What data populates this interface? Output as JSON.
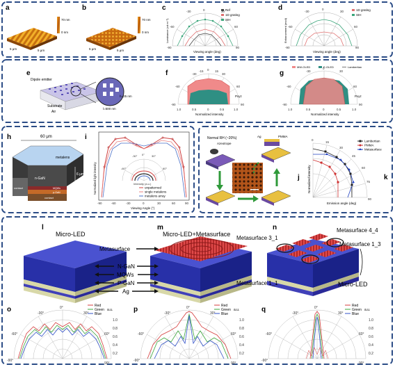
{
  "panels": {
    "a": {
      "letter": "a",
      "scale_top": "70 nm",
      "scale_bot": "0 nm",
      "axis1": "5 μm",
      "axis2": "5 μm"
    },
    "b": {
      "letter": "b",
      "scale_top": "70 nm",
      "scale_bot": "0 nm",
      "axis1": "5 μm",
      "axis2": "5 μm"
    },
    "c": {
      "letter": "c",
      "ylabel": "Luminance (cd m⁻²)",
      "xlabel": "Viewing angle (deg)",
      "legend": [
        "Ref",
        "1D grating",
        "SIH"
      ],
      "ticks": [
        "-90",
        "-60",
        "-30",
        "0",
        "30",
        "60",
        "90"
      ],
      "radial": [
        "6",
        "4",
        "2",
        "0"
      ]
    },
    "d": {
      "letter": "d",
      "ylabel": "Enhancement (mcd)",
      "xlabel": "Viewing angle (deg)",
      "legend": [
        "1D grating",
        "SIH"
      ],
      "ticks": [
        "-90",
        "-60",
        "-30",
        "0",
        "30",
        "60",
        "90"
      ]
    },
    "e": {
      "letter": "e",
      "labels": [
        "Dipole emitter",
        "Substrate",
        "Air",
        "h=25 nm",
        "l=500 nm"
      ]
    },
    "f": {
      "letter": "f",
      "ticks": [
        "-30",
        "-15",
        "0",
        "15",
        "30",
        "-60",
        "60",
        "-90",
        "90"
      ],
      "xlabel": "Normalized intensity",
      "pxyz": "Pxyz",
      "scale": [
        "1.0",
        "0.5",
        "0",
        "0.5",
        "1.0"
      ]
    },
    "g": {
      "letter": "g",
      "legend": [
        "MW-OLED",
        "E-OLED",
        "Lambertian"
      ],
      "ticks": [
        "-30",
        "-15",
        "0",
        "15",
        "30",
        "-60",
        "60",
        "-90",
        "90"
      ],
      "xlabel": "Normalized intensity",
      "pxyz": "Pxyz",
      "scale": [
        "1.0",
        "0.5",
        "0",
        "0.5",
        "1.0"
      ]
    },
    "h": {
      "letter": "h",
      "width": "60 μm",
      "height": "6 μm",
      "labels": [
        "metalens",
        "n-GaN",
        "MQWs",
        "p-GaN",
        "contact",
        "contact"
      ]
    },
    "i": {
      "letter": "i",
      "ylabel": "Normalized light intensity",
      "xlabel": "Viewing Angle (°)",
      "legend": [
        "unpatterned",
        "single metalens",
        "metalens array"
      ],
      "inset_ticks": [
        "-30°",
        "0°",
        "30°",
        "-60°",
        "60°"
      ],
      "inset_label": "Intensity (a.u.)",
      "xticks": [
        "-90",
        "-60",
        "-30",
        "0",
        "30",
        "60",
        "90"
      ]
    },
    "j": {
      "letter": "j",
      "labels": [
        "Normal RH (~20%)",
        "Azeotrope",
        "Ag",
        "PMMA"
      ]
    },
    "k": {
      "letter": "k",
      "legend": [
        "Lambertian",
        "PMMA",
        "Metasurface"
      ],
      "ylabel": "Normalized intensity",
      "xlabel": "Emission angle (deg)",
      "ticks": [
        "0",
        "15",
        "30",
        "45",
        "60",
        "75",
        "90"
      ]
    },
    "l": {
      "letter": "l",
      "title": "Micro-LED"
    },
    "m": {
      "letter": "m",
      "title": "Micro-LED+Metasurface"
    },
    "n": {
      "letter": "n"
    },
    "layers": [
      "Metasurface",
      "N-GaN",
      "MQWs",
      "P-GaN",
      "Ag"
    ],
    "n_labels": [
      "Metasurface 3_1",
      "Metasurface 4_4",
      "Metasurface 1_3",
      "Metasurface 1_1",
      "Micro-LED"
    ],
    "polar_bottom": {
      "o": {
        "letter": "o"
      },
      "p": {
        "letter": "p"
      },
      "q": {
        "letter": "q"
      },
      "legend": [
        "Red",
        "Green",
        "Blue"
      ],
      "unit": "a.u.",
      "ticks": [
        "-30°",
        "0°",
        "30°",
        "-60°",
        "60°",
        "-90°",
        "90°"
      ],
      "radial": [
        "1.0",
        "0.8",
        "0.6",
        "0.4",
        "0.2",
        "0"
      ]
    }
  },
  "colors": {
    "red": "#d43c3c",
    "green": "#3aa53a",
    "blue": "#3050c8",
    "box": "#2b4c86",
    "teal": "#2f8f83",
    "salmon": "#e86a6a"
  }
}
